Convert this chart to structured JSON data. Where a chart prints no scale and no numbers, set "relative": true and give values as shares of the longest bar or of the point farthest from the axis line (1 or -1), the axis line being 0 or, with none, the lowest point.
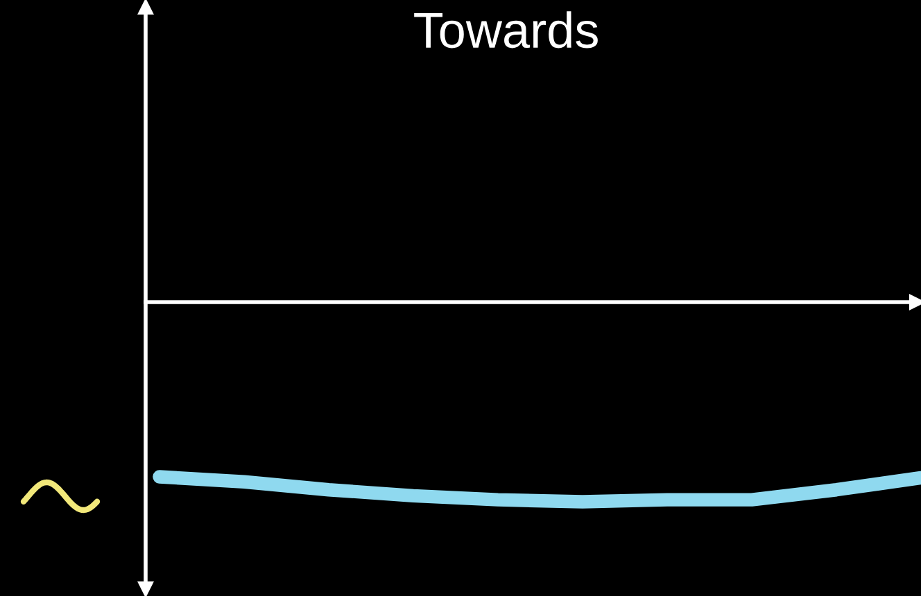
{
  "chart_data": {
    "type": "line",
    "title": "Towards",
    "relative": true,
    "categories": [
      null,
      null,
      null,
      null,
      null,
      null,
      null,
      null,
      null,
      null
    ],
    "series": [
      {
        "color": "#8fd9ef",
        "values": [
          -0.875,
          -0.9,
          -0.94,
          -0.97,
          -0.99,
          -1,
          -0.99,
          -0.99,
          -0.94,
          -0.88
        ]
      }
    ],
    "marker": "none",
    "line_style": "solid"
  }
}
